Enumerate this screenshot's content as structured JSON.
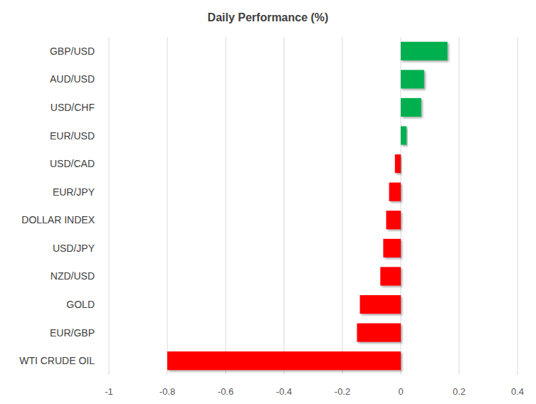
{
  "chart_data": {
    "type": "bar",
    "title": "Daily Performance (%)",
    "orientation": "horizontal",
    "categories": [
      "GBP/USD",
      "AUD/USD",
      "USD/CHF",
      "EUR/USD",
      "USD/CAD",
      "EUR/JPY",
      "DOLLAR INDEX",
      "USD/JPY",
      "NZD/USD",
      "GOLD",
      "EUR/GBP",
      "WTI CRUDE OIL"
    ],
    "values": [
      0.16,
      0.08,
      0.07,
      0.02,
      -0.02,
      -0.04,
      -0.05,
      -0.06,
      -0.07,
      -0.14,
      -0.15,
      -0.8
    ],
    "colors": [
      "#00b050",
      "#00b050",
      "#00b050",
      "#00b050",
      "#ff0000",
      "#ff0000",
      "#ff0000",
      "#ff0000",
      "#ff0000",
      "#ff0000",
      "#ff0000",
      "#ff0000"
    ],
    "xlim": [
      -1,
      0.4
    ],
    "xticks": [
      -1,
      -0.8,
      -0.6,
      -0.4,
      -0.2,
      0,
      0.2,
      0.4
    ],
    "grid": true
  }
}
